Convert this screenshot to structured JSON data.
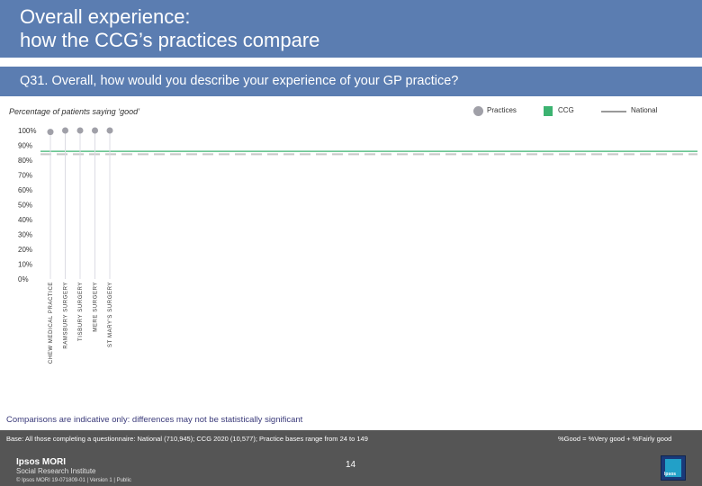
{
  "header": {
    "title_line1": "Overall experience:",
    "title_line2": "how the CCG’s practices compare"
  },
  "question": "Q31. Overall, how would you describe your experience of your GP practice?",
  "subtitle": "Percentage of patients saying ‘good’",
  "legend": {
    "practices": "Practices",
    "ccg": "CCG",
    "national": "National"
  },
  "colors": {
    "header_bg": "#5b7db1",
    "practice_marker": "#a0a0a8",
    "ccg": "#3cb371",
    "national": "#c8c8c8",
    "footer_bg": "#555555"
  },
  "chart_data": {
    "type": "scatter",
    "title": "Q31. Overall, how would you describe your experience of your GP practice?",
    "ylabel": "Percentage of patients saying ‘good’",
    "ylim": [
      0,
      100
    ],
    "y_ticks": [
      "100%",
      "90%",
      "80%",
      "70%",
      "60%",
      "50%",
      "40%",
      "30%",
      "20%",
      "10%",
      "0%"
    ],
    "categories": [
      "CHEW MEDICAL PRACTICE",
      "RAMSBURY SURGERY",
      "TISBURY SURGERY",
      "MERE SURGERY",
      "ST MARY'S SURGERY"
    ],
    "series": [
      {
        "name": "Practices",
        "values": [
          99,
          100,
          100,
          100,
          100
        ]
      }
    ],
    "ccg_value": 86,
    "national_value": 84
  },
  "footer": {
    "note": "Comparisons are indicative only: differences may not be statistically significant",
    "base": "Base: All those completing a questionnaire: National (710,945); CCG 2020 (10,577); Practice bases range from 24 to 149",
    "formula": "%Good = %Very good + %Fairly good",
    "brand_line1": "Ipsos MORI",
    "brand_line2": "Social Research Institute",
    "copyright": "© Ipsos MORI     19-071809-01 | Version 1 | Public",
    "page": "14",
    "logo": "Ipsos"
  }
}
